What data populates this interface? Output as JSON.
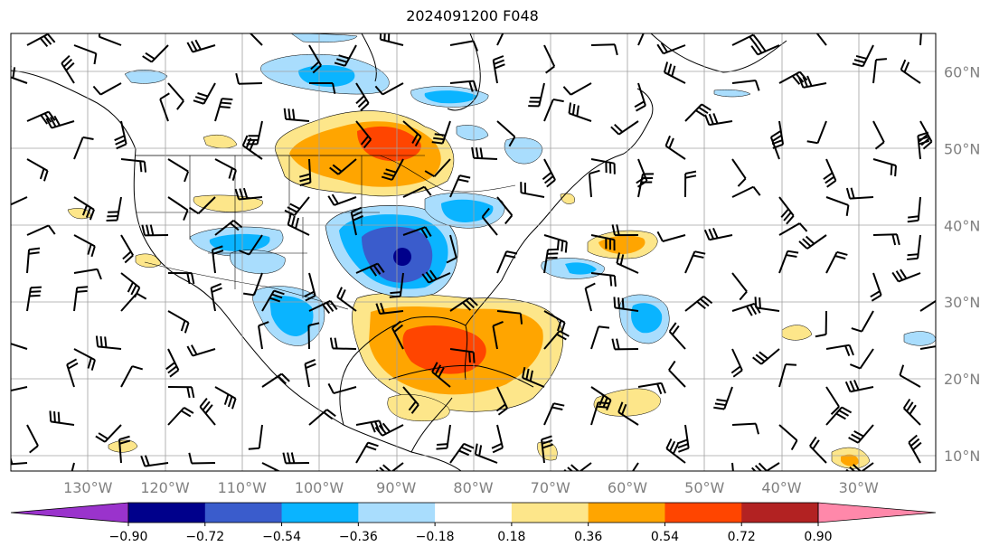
{
  "title": "2024091200 F048",
  "map": {
    "lon_min": -140,
    "lon_max": -20,
    "lat_min": 8,
    "lat_max": 65,
    "lon_ticks": [
      {
        "value": -130,
        "label": "130°W"
      },
      {
        "value": -120,
        "label": "120°W"
      },
      {
        "value": -110,
        "label": "110°W"
      },
      {
        "value": -100,
        "label": "100°W"
      },
      {
        "value": -90,
        "label": "90°W"
      },
      {
        "value": -80,
        "label": "80°W"
      },
      {
        "value": -70,
        "label": "70°W"
      },
      {
        "value": -60,
        "label": "60°W"
      },
      {
        "value": -50,
        "label": "50°W"
      },
      {
        "value": -40,
        "label": "40°W"
      },
      {
        "value": -30,
        "label": "30°W"
      }
    ],
    "lat_ticks": [
      {
        "value": 60,
        "label": "60°N"
      },
      {
        "value": 50,
        "label": "50°N"
      },
      {
        "value": 40,
        "label": "40°N"
      },
      {
        "value": 30,
        "label": "30°N"
      },
      {
        "value": 20,
        "label": "20°N"
      },
      {
        "value": 10,
        "label": "10°N"
      }
    ],
    "grid": true
  },
  "colorbar": {
    "levels": [
      "−0.90",
      "−0.72",
      "−0.54",
      "−0.36",
      "−0.18",
      "0.18",
      "0.36",
      "0.54",
      "0.72",
      "0.90"
    ],
    "colors": [
      "#9a33cc",
      "#00008b",
      "#3a5ccc",
      "#0ab4ff",
      "#a9ddfd",
      "#ffffff",
      "#fde68a",
      "#ffa500",
      "#ff4500",
      "#b22222",
      "#ff88aa"
    ]
  },
  "field_colors": {
    "neg_strong": "#3a5ccc",
    "neg_mid": "#0ab4ff",
    "neg_weak": "#a9ddfd",
    "pos_weak": "#fde68a",
    "pos_mid": "#ffa500",
    "pos_strong": "#ff4500"
  }
}
